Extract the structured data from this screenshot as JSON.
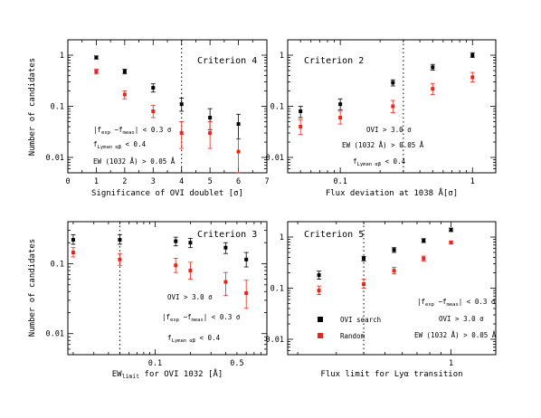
{
  "colors": {
    "ovi_search": "#000000",
    "random": "#e8261c"
  },
  "chart_data": [
    {
      "type": "scatter",
      "criterion": "Criterion 4",
      "xlabel": "Significance of OVI doublet [σ]",
      "ylabel": "Number of candidates",
      "xscale": "linear",
      "yscale": "log",
      "xlim": [
        0,
        7
      ],
      "ylim": [
        0.005,
        2
      ],
      "xticks": [
        0,
        1,
        2,
        3,
        4,
        5,
        6,
        7
      ],
      "yticks": [
        0.01,
        0.1,
        1
      ],
      "ytick_labels": [
        "0.01",
        "0.1",
        "1"
      ],
      "threshold": 4,
      "annotations": [
        "|f_exp −f_meas| < 0.3 σ",
        "f_Lyman αβ < 0.4",
        "EW (1032 Å) > 0.05 Å"
      ],
      "series": [
        {
          "color": "#000000",
          "x": [
            1,
            2,
            3,
            4,
            5,
            6
          ],
          "y": [
            0.9,
            0.48,
            0.23,
            0.11,
            0.06,
            0.045
          ],
          "yerr_lo": [
            0.06,
            0.05,
            0.04,
            0.03,
            0.025,
            0.022
          ],
          "yerr_hi": [
            0.07,
            0.05,
            0.045,
            0.035,
            0.03,
            0.025
          ]
        },
        {
          "color": "#e8261c",
          "x": [
            1,
            2,
            3,
            4,
            5,
            6
          ],
          "y": [
            0.48,
            0.17,
            0.08,
            0.03,
            0.03,
            0.013
          ],
          "yerr_lo": [
            0.05,
            0.03,
            0.02,
            0.015,
            0.015,
            0.008
          ],
          "yerr_hi": [
            0.05,
            0.03,
            0.025,
            0.02,
            0.02,
            0.01
          ]
        }
      ]
    },
    {
      "type": "scatter",
      "criterion": "Criterion 2",
      "xlabel": "Flux deviation at 1038 Å[σ]",
      "ylabel": "",
      "xscale": "log",
      "yscale": "log",
      "xlim": [
        0.04,
        1.5
      ],
      "ylim": [
        0.005,
        2
      ],
      "xticks": [
        0.1,
        1
      ],
      "xtick_labels": [
        "0.1",
        "1"
      ],
      "yticks": [
        0.01,
        0.1,
        1
      ],
      "ytick_labels": [
        "0.01",
        "0.1",
        "1"
      ],
      "threshold": 0.3,
      "annotations": [
        "OVI > 3.0 σ",
        "EW (1032 Å) > 0.05 Å",
        "f_Lyman αβ < 0.4"
      ],
      "series": [
        {
          "color": "#000000",
          "x": [
            0.05,
            0.1,
            0.25,
            0.5,
            1.0
          ],
          "y": [
            0.08,
            0.11,
            0.29,
            0.58,
            1.0
          ],
          "yerr_lo": [
            0.02,
            0.025,
            0.04,
            0.07,
            0.1
          ],
          "yerr_hi": [
            0.02,
            0.03,
            0.04,
            0.08,
            0.12
          ]
        },
        {
          "color": "#e8261c",
          "x": [
            0.05,
            0.1,
            0.25,
            0.5,
            1.0
          ],
          "y": [
            0.04,
            0.06,
            0.1,
            0.22,
            0.37
          ],
          "yerr_lo": [
            0.012,
            0.015,
            0.025,
            0.05,
            0.07
          ],
          "yerr_hi": [
            0.015,
            0.02,
            0.03,
            0.06,
            0.09
          ]
        }
      ]
    },
    {
      "type": "scatter",
      "criterion": "Criterion 3",
      "xlabel": "EW_limit for OVI 1032 [Å]",
      "ylabel": "Number of candidates",
      "xscale": "log",
      "yscale": "log",
      "xlim": [
        0.018,
        0.9
      ],
      "ylim": [
        0.005,
        0.4
      ],
      "xticks": [
        0.1,
        0.5
      ],
      "xtick_labels": [
        "0.1",
        "0.5"
      ],
      "yticks": [
        0.01,
        0.1
      ],
      "ytick_labels": [
        "0.01",
        "0.1"
      ],
      "threshold": 0.05,
      "annotations": [
        "OVI > 3.0 σ",
        "|f_exp −f_meas| < 0.3 σ",
        "f_Lyman αβ < 0.4"
      ],
      "series": [
        {
          "color": "#000000",
          "x": [
            0.02,
            0.05,
            0.15,
            0.2,
            0.4,
            0.6
          ],
          "y": [
            0.22,
            0.22,
            0.21,
            0.2,
            0.17,
            0.115
          ],
          "yerr_lo": [
            0.03,
            0.03,
            0.03,
            0.03,
            0.03,
            0.025
          ],
          "yerr_hi": [
            0.04,
            0.04,
            0.03,
            0.03,
            0.03,
            0.03
          ]
        },
        {
          "color": "#e8261c",
          "x": [
            0.02,
            0.05,
            0.15,
            0.2,
            0.4,
            0.6
          ],
          "y": [
            0.145,
            0.115,
            0.095,
            0.08,
            0.055,
            0.038
          ],
          "yerr_lo": [
            0.02,
            0.02,
            0.02,
            0.02,
            0.02,
            0.015
          ],
          "yerr_hi": [
            0.025,
            0.025,
            0.025,
            0.025,
            0.02,
            0.02
          ]
        }
      ]
    },
    {
      "type": "scatter",
      "criterion": "Criterion 5",
      "xlabel": "Flux limit for Lyα transition",
      "ylabel": "",
      "xscale": "log",
      "yscale": "log",
      "xlim": [
        0.18,
        1.6
      ],
      "ylim": [
        0.005,
        2
      ],
      "xticks": [
        1
      ],
      "xtick_labels": [
        "1"
      ],
      "yticks": [
        0.01,
        0.1,
        1
      ],
      "ytick_labels": [
        "0.01",
        "0.1",
        "1"
      ],
      "threshold": 0.4,
      "annotations": [
        "|f_exp −f_meas| < 0.3 σ",
        "OVI > 3.0 σ",
        "EW (1032 Å) > 0.05 Å"
      ],
      "legend": [
        "OVI search",
        "Random"
      ],
      "series": [
        {
          "name": "OVI search",
          "color": "#000000",
          "x": [
            0.25,
            0.4,
            0.55,
            0.75,
            1.0
          ],
          "y": [
            0.18,
            0.38,
            0.56,
            0.85,
            1.38
          ],
          "yerr_lo": [
            0.03,
            0.04,
            0.06,
            0.07,
            0.1
          ],
          "yerr_hi": [
            0.035,
            0.04,
            0.06,
            0.08,
            0.12
          ]
        },
        {
          "name": "Random",
          "color": "#e8261c",
          "x": [
            0.25,
            0.4,
            0.55,
            0.75,
            1.0
          ],
          "y": [
            0.09,
            0.12,
            0.22,
            0.38,
            0.78
          ],
          "yerr_lo": [
            0.015,
            0.02,
            0.03,
            0.04,
            0.05
          ],
          "yerr_hi": [
            0.02,
            0.03,
            0.035,
            0.045,
            0.06
          ]
        }
      ]
    }
  ]
}
